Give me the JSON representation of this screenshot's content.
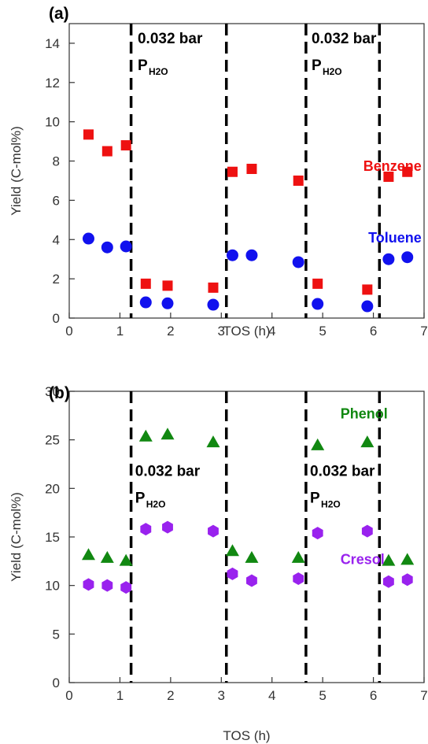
{
  "chart_data": [
    {
      "type": "scatter",
      "panel_label": "(a)",
      "xlabel": "TOS (h)",
      "ylabel": "Yield (C-mol%)",
      "xlim": [
        0,
        7
      ],
      "ylim": [
        0,
        15
      ],
      "xticks": [
        0,
        1,
        2,
        3,
        4,
        5,
        6,
        7
      ],
      "yticks": [
        0,
        2,
        4,
        6,
        8,
        10,
        12,
        14
      ],
      "grid": false,
      "legend": "none",
      "vlines": [
        1.22,
        3.1,
        4.67,
        6.12
      ],
      "annotations": [
        {
          "text": "0.032 bar",
          "symbol": "P",
          "subscript": "H2O",
          "x": 1.35,
          "y": 14.0
        },
        {
          "text": "0.032 bar",
          "symbol": "P",
          "subscript": "H2O",
          "x": 4.78,
          "y": 14.0
        }
      ],
      "series": [
        {
          "name": "Benzene",
          "marker": "square",
          "color": "#ee1111",
          "label_x": 6.95,
          "label_y": 7.5,
          "x": [
            0.38,
            0.75,
            1.12,
            1.51,
            1.94,
            2.84,
            3.22,
            3.6,
            4.52,
            4.9,
            5.88,
            6.3,
            6.67
          ],
          "y": [
            9.35,
            8.5,
            8.8,
            1.75,
            1.65,
            1.55,
            7.45,
            7.6,
            7.0,
            1.75,
            1.45,
            7.2,
            7.45
          ]
        },
        {
          "name": "Toluene",
          "marker": "circle",
          "color": "#1111ee",
          "label_x": 6.95,
          "label_y": 3.85,
          "x": [
            0.38,
            0.75,
            1.12,
            1.51,
            1.94,
            2.84,
            3.22,
            3.6,
            4.52,
            4.9,
            5.88,
            6.3,
            6.67
          ],
          "y": [
            4.05,
            3.6,
            3.65,
            0.8,
            0.75,
            0.68,
            3.2,
            3.2,
            2.85,
            0.72,
            0.6,
            3.0,
            3.1
          ]
        }
      ]
    },
    {
      "type": "scatter",
      "panel_label": "(b)",
      "xlabel": "TOS (h)",
      "ylabel": "Yield (C-mol%)",
      "xlim": [
        0,
        7
      ],
      "ylim": [
        0,
        30
      ],
      "xticks": [
        0,
        1,
        2,
        3,
        4,
        5,
        6,
        7
      ],
      "yticks": [
        0,
        5,
        10,
        15,
        20,
        25,
        30
      ],
      "grid": false,
      "legend": "none",
      "vlines": [
        1.22,
        3.1,
        4.67,
        6.12
      ],
      "annotations": [
        {
          "text": "0.032 bar",
          "symbol": "P",
          "subscript": "H2O",
          "x": 1.3,
          "y": 21.3
        },
        {
          "text": "0.032 bar",
          "symbol": "P",
          "subscript": "H2O",
          "x": 4.75,
          "y": 21.3
        }
      ],
      "series": [
        {
          "name": "Phenol",
          "marker": "triangle",
          "color": "#118811",
          "label_x": 5.35,
          "label_y": 27.2,
          "x": [
            0.38,
            0.75,
            1.12,
            1.51,
            1.94,
            2.84,
            3.22,
            3.6,
            4.52,
            4.9,
            5.88,
            6.3,
            6.67
          ],
          "y": [
            13.2,
            12.9,
            12.6,
            25.4,
            25.6,
            24.8,
            13.6,
            12.9,
            12.9,
            24.5,
            24.8,
            12.6,
            12.7
          ]
        },
        {
          "name": "Cresol",
          "marker": "hexagon",
          "color": "#9922ee",
          "label_x": 5.35,
          "label_y": 12.2,
          "x": [
            0.38,
            0.75,
            1.12,
            1.51,
            1.94,
            2.84,
            3.22,
            3.6,
            4.52,
            4.9,
            5.88,
            6.3,
            6.67
          ],
          "y": [
            10.1,
            10.0,
            9.8,
            15.8,
            16.0,
            15.6,
            11.2,
            10.5,
            10.7,
            15.4,
            15.6,
            10.4,
            10.6
          ]
        }
      ]
    }
  ]
}
